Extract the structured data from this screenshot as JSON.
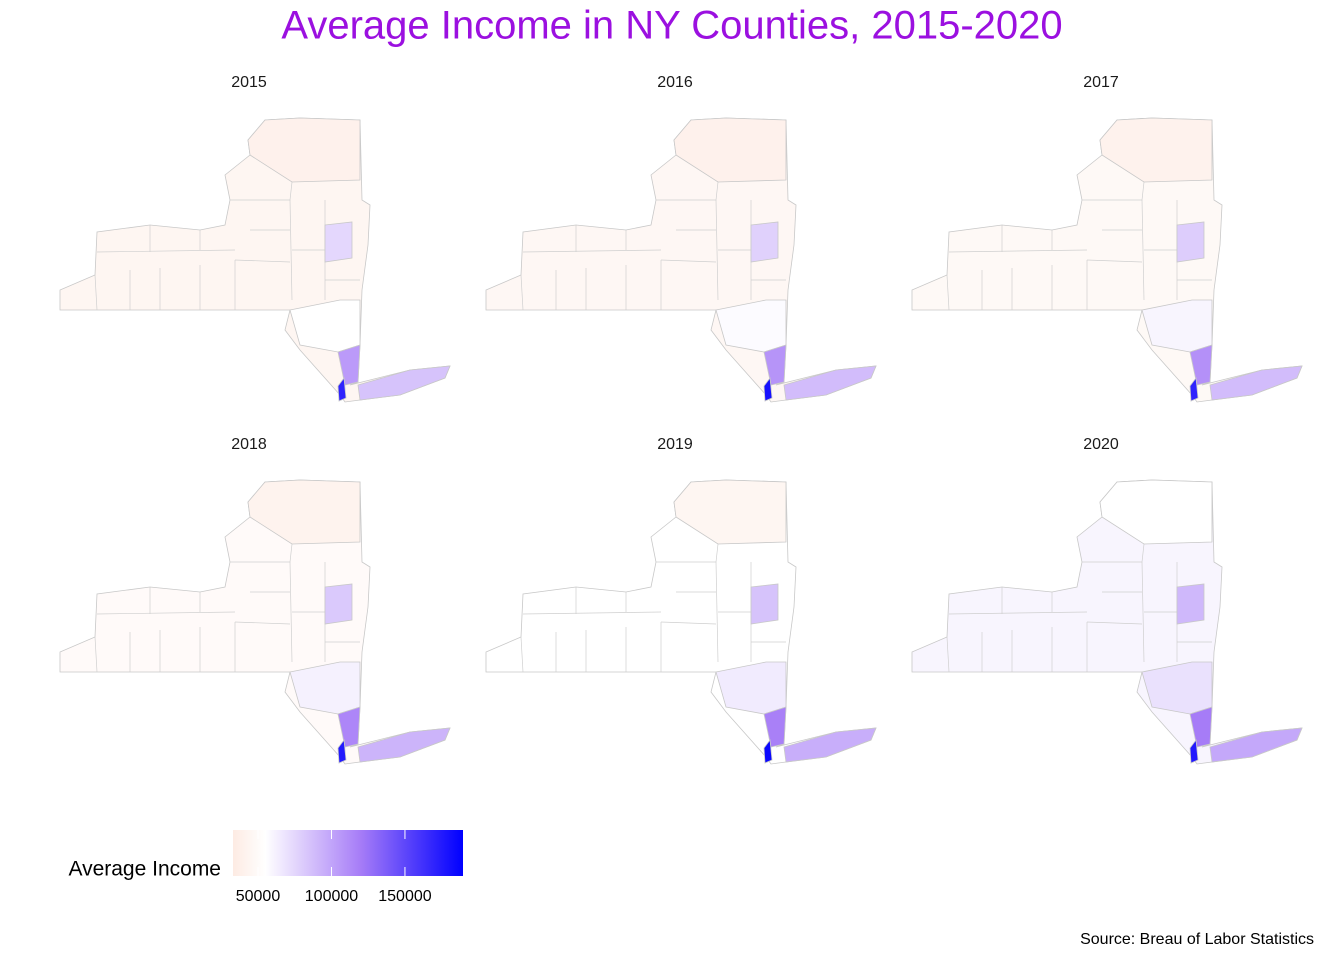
{
  "chart_data": {
    "type": "choropleth",
    "title": "Average Income in NY Counties, 2015-2020",
    "source": "Source: Breau of Labor Statistics",
    "legend": {
      "title": "Average Income",
      "lim": [
        33000,
        189500
      ],
      "ticks": [
        50000,
        100000,
        150000
      ],
      "stops": [
        {
          "value": 33000,
          "color": "#fdebe3"
        },
        {
          "value": 55000,
          "color": "#ffffff"
        },
        {
          "value": 120000,
          "color": "#a67cf7"
        },
        {
          "value": 189500,
          "color": "#0000ff"
        }
      ]
    },
    "panels": [
      {
        "title": "2015",
        "values": [
          45000,
          40000,
          75000,
          55000,
          105000,
          85000,
          170000
        ]
      },
      {
        "title": "2016",
        "values": [
          46000,
          40000,
          78000,
          57000,
          108000,
          88000,
          180000
        ]
      },
      {
        "title": "2017",
        "values": [
          48000,
          41000,
          80000,
          60000,
          110000,
          88000,
          170000
        ]
      },
      {
        "title": "2018",
        "values": [
          50000,
          42000,
          82000,
          62000,
          115000,
          92000,
          175000
        ]
      },
      {
        "title": "2019",
        "values": [
          55000,
          45000,
          85000,
          65000,
          118000,
          95000,
          185000
        ]
      },
      {
        "title": "2020",
        "values": [
          60000,
          55000,
          90000,
          70000,
          120000,
          98000,
          175000
        ]
      }
    ]
  }
}
